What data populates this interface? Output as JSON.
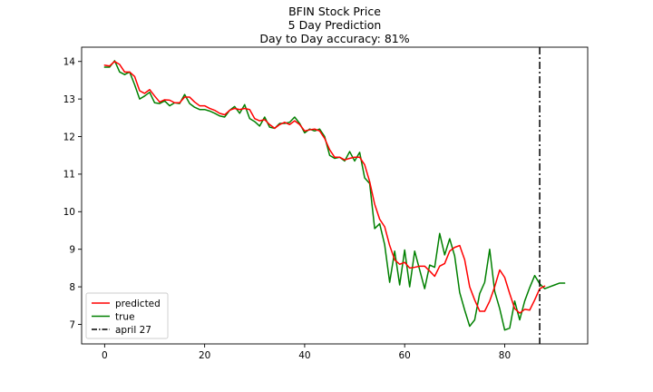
{
  "chart_data": {
    "type": "line",
    "title_lines": [
      "BFIN Stock Price",
      "5 Day Prediction",
      "Day to Day accuracy: 81%"
    ],
    "xlabel": "",
    "ylabel": "",
    "xlim": [
      -4.6,
      96.6
    ],
    "ylim": [
      6.48,
      14.38
    ],
    "x_ticks": [
      0,
      20,
      40,
      60,
      80
    ],
    "y_ticks": [
      7,
      8,
      9,
      10,
      11,
      12,
      13,
      14
    ],
    "legend_position": "lower-left",
    "series": [
      {
        "name": "predicted",
        "color": "#ff0000",
        "x": [
          0,
          1,
          2,
          3,
          4,
          5,
          6,
          7,
          8,
          9,
          10,
          11,
          12,
          13,
          14,
          15,
          16,
          17,
          18,
          19,
          20,
          21,
          22,
          23,
          24,
          25,
          26,
          27,
          28,
          29,
          30,
          31,
          32,
          33,
          34,
          35,
          36,
          37,
          38,
          39,
          40,
          41,
          42,
          43,
          44,
          45,
          46,
          47,
          48,
          49,
          50,
          51,
          52,
          53,
          54,
          55,
          56,
          57,
          58,
          59,
          60,
          61,
          62,
          63,
          64,
          65,
          66,
          67,
          68,
          69,
          70,
          71,
          72,
          73,
          74,
          75,
          76,
          77,
          78,
          79,
          80,
          81,
          82,
          83,
          84,
          85,
          86,
          87
        ],
        "y": [
          13.9,
          13.88,
          14.0,
          13.92,
          13.72,
          13.72,
          13.6,
          13.22,
          13.15,
          13.25,
          13.08,
          12.92,
          12.98,
          12.97,
          12.9,
          12.9,
          13.05,
          13.05,
          12.92,
          12.82,
          12.82,
          12.75,
          12.7,
          12.62,
          12.58,
          12.7,
          12.75,
          12.72,
          12.75,
          12.72,
          12.48,
          12.42,
          12.45,
          12.32,
          12.22,
          12.32,
          12.38,
          12.32,
          12.42,
          12.32,
          12.15,
          12.18,
          12.2,
          12.15,
          11.95,
          11.65,
          11.45,
          11.45,
          11.38,
          11.42,
          11.45,
          11.45,
          11.25,
          10.8,
          10.2,
          9.8,
          9.6,
          9.1,
          8.72,
          8.6,
          8.65,
          8.5,
          8.52,
          8.55,
          8.55,
          8.42,
          8.28,
          8.55,
          8.62,
          8.95,
          9.05,
          9.1,
          8.72,
          8.0,
          7.65,
          7.35,
          7.35,
          7.62,
          8.0,
          8.45,
          8.25,
          7.82,
          7.42,
          7.3,
          7.4,
          7.38,
          7.65,
          7.95
        ],
        "tail_x": [
          88
        ],
        "tail_y": [
          8.02
        ]
      },
      {
        "name": "true",
        "color": "#008000",
        "x": [
          0,
          1,
          2,
          3,
          4,
          5,
          6,
          7,
          8,
          9,
          10,
          11,
          12,
          13,
          14,
          15,
          16,
          17,
          18,
          19,
          20,
          21,
          22,
          23,
          24,
          25,
          26,
          27,
          28,
          29,
          30,
          31,
          32,
          33,
          34,
          35,
          36,
          37,
          38,
          39,
          40,
          41,
          42,
          43,
          44,
          45,
          46,
          47,
          48,
          49,
          50,
          51,
          52,
          53,
          54,
          55,
          56,
          57,
          58,
          59,
          60,
          61,
          62,
          63,
          64,
          65,
          66,
          67,
          68,
          69,
          70,
          71,
          72,
          73,
          74,
          75,
          76,
          77,
          78,
          79,
          80,
          81,
          82,
          83,
          84,
          85,
          86,
          87,
          88,
          89,
          90,
          91,
          92
        ],
        "y": [
          13.85,
          13.85,
          14.02,
          13.72,
          13.65,
          13.72,
          13.38,
          13.0,
          13.08,
          13.18,
          12.9,
          12.88,
          12.95,
          12.82,
          12.9,
          12.88,
          13.12,
          12.88,
          12.78,
          12.72,
          12.72,
          12.68,
          12.62,
          12.55,
          12.52,
          12.7,
          12.8,
          12.62,
          12.85,
          12.48,
          12.4,
          12.28,
          12.52,
          12.25,
          12.22,
          12.35,
          12.35,
          12.38,
          12.52,
          12.35,
          12.1,
          12.2,
          12.15,
          12.2,
          12.0,
          11.5,
          11.42,
          11.45,
          11.35,
          11.6,
          11.35,
          11.58,
          10.9,
          10.75,
          9.55,
          9.68,
          9.12,
          8.12,
          8.95,
          8.05,
          8.98,
          8.0,
          8.95,
          8.45,
          7.95,
          8.58,
          8.52,
          9.42,
          8.85,
          9.28,
          8.82,
          7.85,
          7.38,
          6.95,
          7.12,
          7.82,
          8.12,
          9.0,
          7.88,
          7.42,
          6.85,
          6.9,
          7.62,
          7.12,
          7.62,
          7.98,
          8.3,
          8.08,
          7.95,
          8.0,
          8.05,
          8.1,
          8.1
        ]
      }
    ],
    "annotation": {
      "type": "vline",
      "x": 87,
      "label": "april 27",
      "color": "#000000",
      "style": "dash-dot"
    }
  }
}
